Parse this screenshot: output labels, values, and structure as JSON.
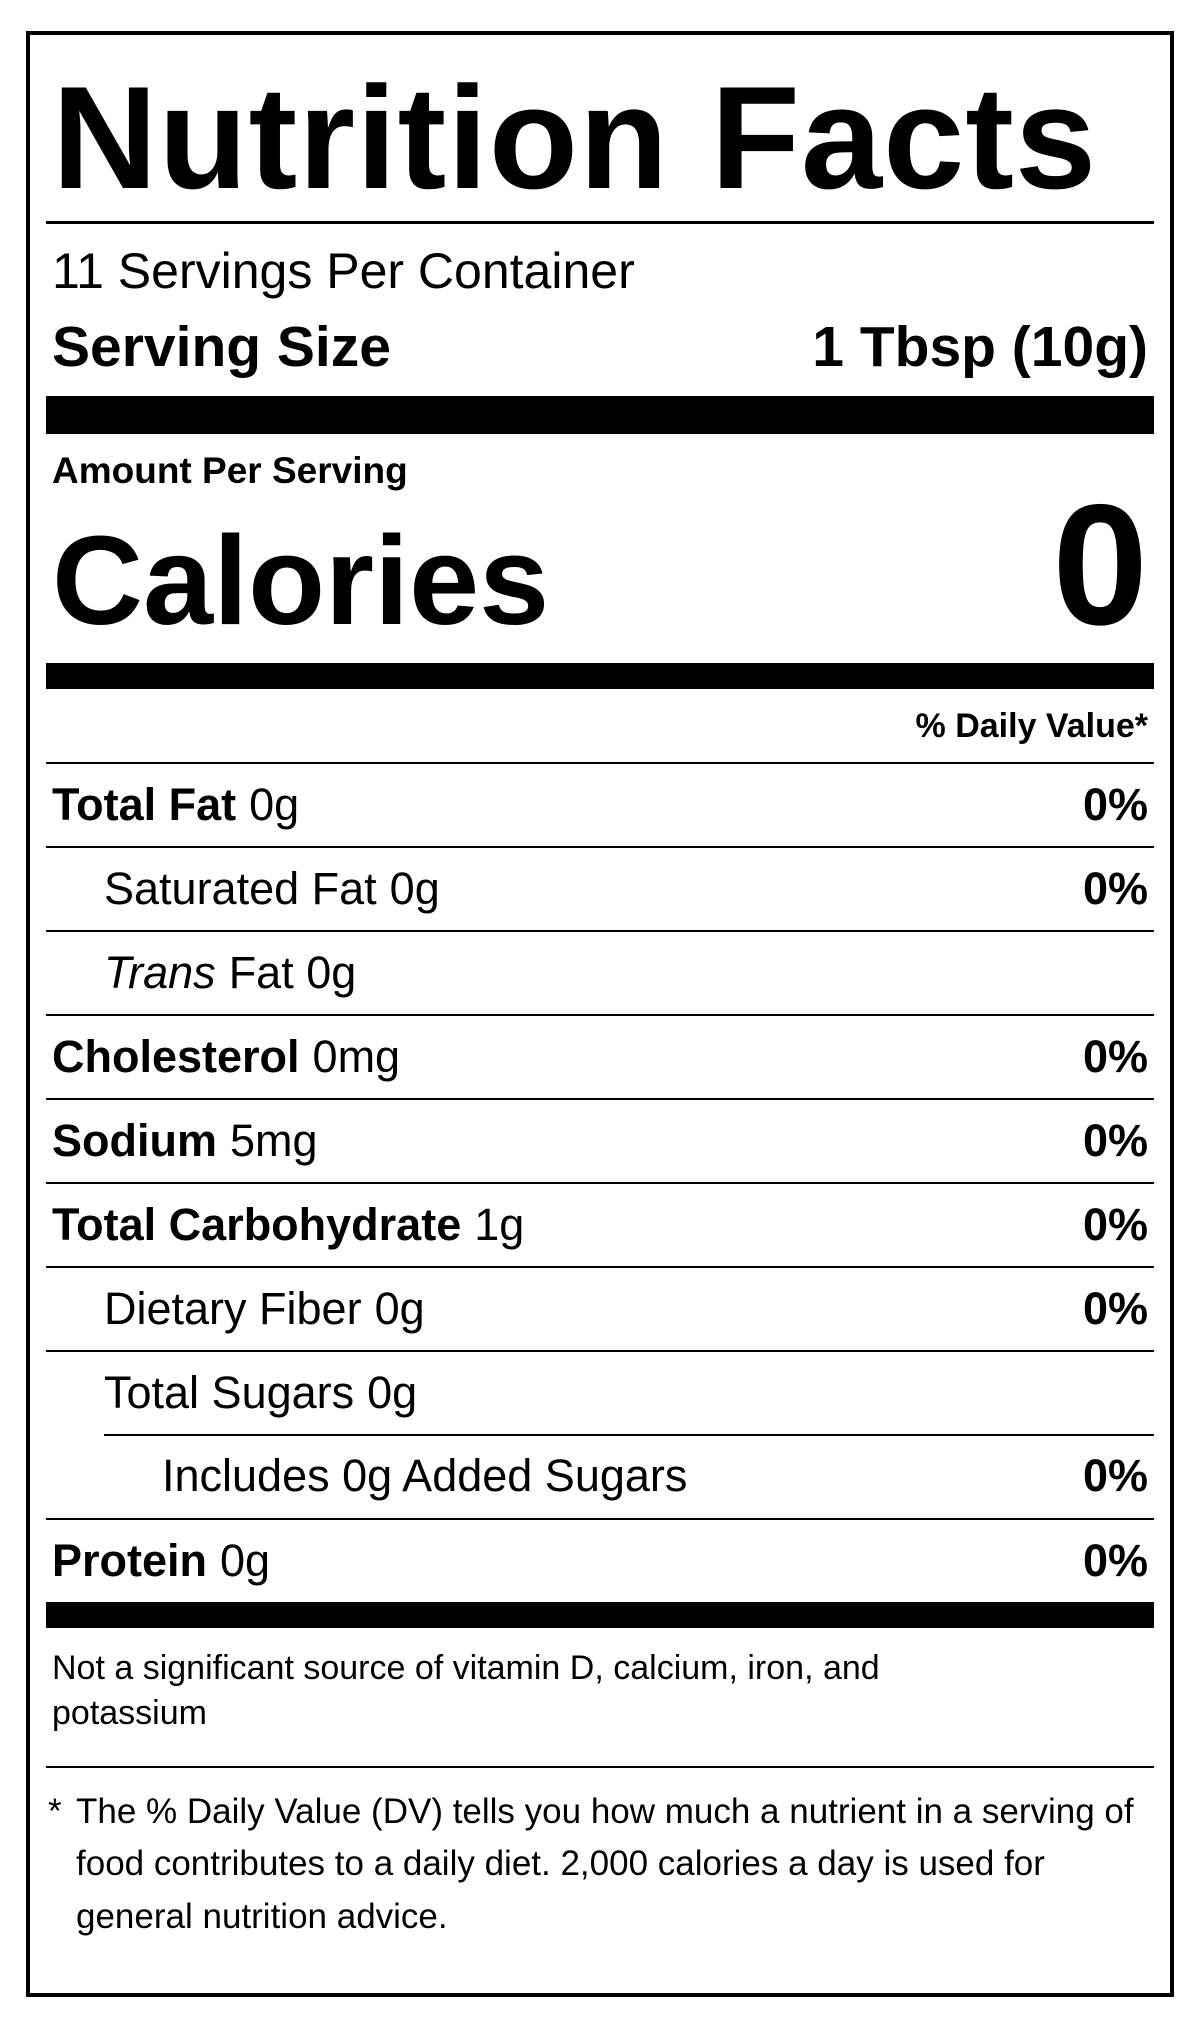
{
  "label": {
    "title": "Nutrition Facts",
    "servings_per_container": "11 Servings Per Container",
    "serving_size": {
      "label": "Serving Size",
      "value": "1 Tbsp (10g)"
    },
    "amount_per_serving": "Amount Per Serving",
    "calories": {
      "label": "Calories",
      "value": "0"
    },
    "daily_value_header": "% Daily Value*",
    "nutrients": [
      {
        "name": "Total Fat",
        "amount": "0g",
        "dv": "0%"
      },
      {
        "name": "Saturated Fat",
        "amount": "0g",
        "dv": "0%"
      },
      {
        "name": "Trans",
        "amount": "Fat 0g",
        "dv": ""
      },
      {
        "name": "Cholesterol",
        "amount": "0mg",
        "dv": "0%"
      },
      {
        "name": "Sodium",
        "amount": "5mg",
        "dv": "0%"
      },
      {
        "name": "Total Carbohydrate",
        "amount": "1g",
        "dv": "0%"
      },
      {
        "name": "Dietary Fiber",
        "amount": "0g",
        "dv": "0%"
      },
      {
        "name": "Total Sugars",
        "amount": "0g",
        "dv": ""
      },
      {
        "name": "Includes 0g Added Sugars",
        "amount": "",
        "dv": "0%"
      },
      {
        "name": "Protein",
        "amount": "0g",
        "dv": "0%"
      }
    ],
    "not_significant": "Not a significant source of vitamin D, calcium, iron, and potassium",
    "footnote": {
      "symbol": "*",
      "text": "The % Daily Value (DV) tells you how much a nutrient in a serving of food contributes to a daily diet. 2,000 calories a day is used for general nutrition advice."
    }
  }
}
